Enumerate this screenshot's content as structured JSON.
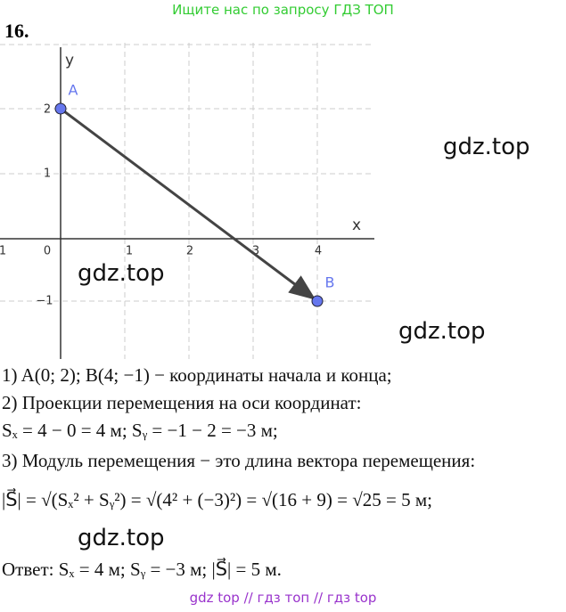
{
  "header": {
    "notice": "Ищите нас по запросу ГДЗ ТОП"
  },
  "problem": {
    "number": "16."
  },
  "graph": {
    "axis_x": "x",
    "axis_y": "y",
    "x_tick_labels": [
      "1",
      "0",
      "1",
      "2",
      "3",
      "4"
    ],
    "y_tick_labels": [
      "2",
      "1",
      "−1"
    ],
    "points": [
      {
        "label": "A"
      },
      {
        "label": "B"
      }
    ]
  },
  "watermarks": [
    "gdz.top",
    "gdz.top",
    "gdz.top",
    "gdz.top"
  ],
  "solution": {
    "lines": [
      "1) A(0; 2); B(4; −1) − координаты начала и конца;",
      "2) Проекции перемещения на оси координат:",
      "Sₓ = 4 − 0 = 4 м;    Sᵧ = −1 − 2 = −3 м;",
      "3) Модуль перемещения − это длина вектора перемещения:",
      "|S⃗| = √(Sₓ² + Sᵧ²) = √(4² + (−3)²) = √(16 + 9) = √25 = 5 м;",
      "Ответ: Sₓ = 4 м; Sᵧ = −3 м; |S⃗| = 5 м."
    ]
  },
  "footer": "gdz top  //  гдз топ  //  гдз top"
}
